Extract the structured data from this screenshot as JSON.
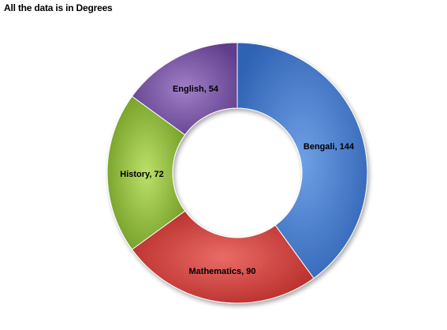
{
  "chart_data": {
    "type": "pie",
    "variant": "donut",
    "title": "All the data is in Degrees",
    "categories": [
      "Bengali",
      "Mathematics",
      "History",
      "English"
    ],
    "values": [
      144,
      90,
      72,
      54
    ],
    "data_labels": [
      "Bengali, 144",
      "Mathematics, 90",
      "History, 72",
      "English, 54"
    ],
    "colors": {
      "Bengali": "#4a7fd1",
      "Mathematics": "#d2403d",
      "History": "#93bd3c",
      "English": "#7e57a8"
    },
    "start": "top, clockwise",
    "legend": "none"
  }
}
